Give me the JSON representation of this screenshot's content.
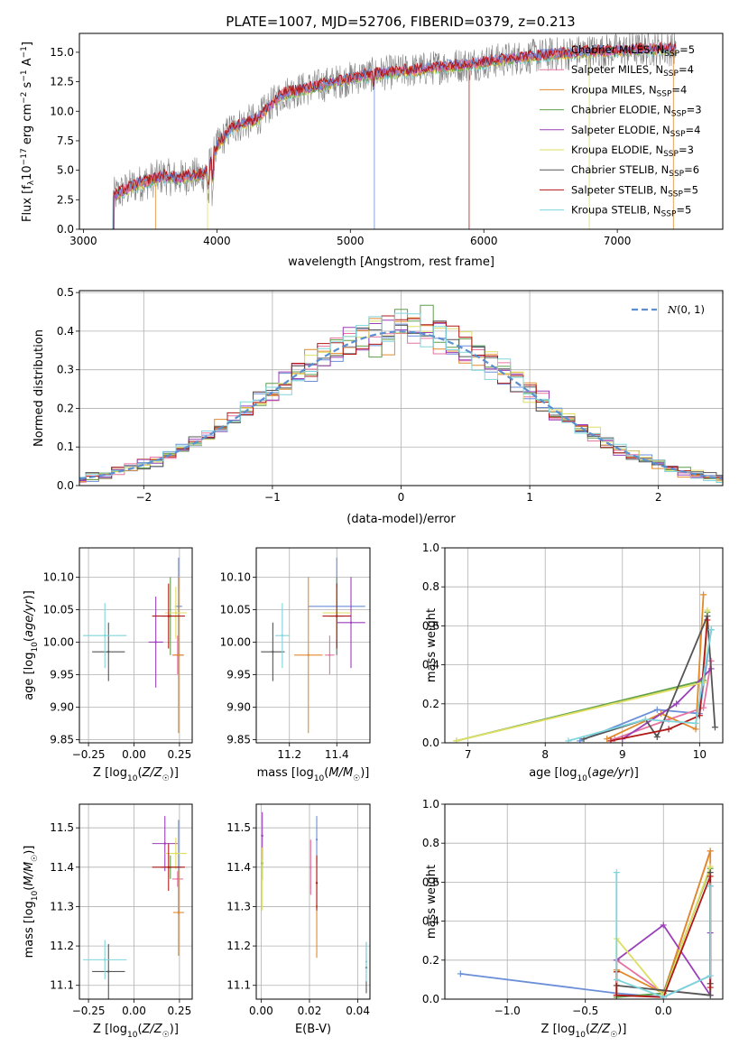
{
  "colors": {
    "CM": "#6a8fd8",
    "SM": "#e6739f",
    "KM": "#e08a2c",
    "CE": "#5f9e4a",
    "SE": "#9a3fb8",
    "KE": "#dede63",
    "CS": "#555555",
    "SS": "#b01818",
    "KS": "#7fd5dc",
    "normal": "#5b8fd0"
  },
  "chart_data": [
    {
      "type": "line",
      "id": "spectrum",
      "title": "PLATE=1007, MJD=52706, FIBERID=0379, z=0.213",
      "xlabel": "wavelength [Angstrom, rest frame]",
      "ylabel": "Flux [f_λ 10^-17 erg cm^-2 s^-1 A^-1]",
      "xlim": [
        2970,
        7790
      ],
      "ylim": [
        0,
        16.6
      ],
      "xticks": [
        3000,
        4000,
        5000,
        6000,
        7000
      ],
      "yticks": [
        0.0,
        2.5,
        5.0,
        7.5,
        10.0,
        12.5,
        15.0
      ],
      "legend_position": "right",
      "series": [
        {
          "key": "CM",
          "name": "Chabrier MILES, N_SSP=5"
        },
        {
          "key": "SM",
          "name": "Salpeter MILES, N_SSP=4"
        },
        {
          "key": "KM",
          "name": "Kroupa MILES, N_SSP=4"
        },
        {
          "key": "CE",
          "name": "Chabrier ELODIE, N_SSP=3"
        },
        {
          "key": "SE",
          "name": "Salpeter ELODIE, N_SSP=4"
        },
        {
          "key": "KE",
          "name": "Kroupa ELODIE, N_SSP=3"
        },
        {
          "key": "CS",
          "name": "Chabrier STELIB, N_SSP=6"
        },
        {
          "key": "SS",
          "name": "Salpeter STELIB, N_SSP=5"
        },
        {
          "key": "KS",
          "name": "Kroupa STELIB, N_SSP=5"
        }
      ],
      "continuum": {
        "x": [
          3220,
          3400,
          3600,
          3700,
          3800,
          3900,
          3950,
          4000,
          4100,
          4200,
          4300,
          4400,
          4500,
          4700,
          4900,
          5100,
          5300,
          5500,
          5700,
          5900,
          6100,
          6300,
          6500,
          6700,
          6900,
          7100,
          7300,
          7440
        ],
        "y": [
          2.8,
          3.8,
          4.5,
          4.3,
          4.5,
          4.6,
          5.5,
          7.0,
          8.5,
          9.0,
          9.3,
          10.5,
          11.5,
          12.0,
          12.5,
          13.0,
          13.3,
          13.5,
          13.8,
          14.0,
          14.3,
          14.6,
          14.8,
          15.0,
          15.1,
          15.2,
          15.3,
          15.3
        ]
      }
    },
    {
      "type": "line",
      "id": "residuals",
      "xlabel": "(data-model)/error",
      "ylabel": "Normed distribution",
      "xlim": [
        -2.5,
        2.5
      ],
      "ylim": [
        0,
        0.505
      ],
      "xticks": [
        -2,
        -1,
        0,
        1,
        2
      ],
      "yticks": [
        0.0,
        0.1,
        0.2,
        0.3,
        0.4,
        0.5
      ],
      "grid": true,
      "legend_position": "top-right",
      "legend_label": "N(0,1)",
      "bin_width": 0.1
    },
    {
      "type": "scatter",
      "id": "age_vs_Z",
      "xlabel": "Z [log10(Z/Z☉)]",
      "ylabel": "age [log10(age/yr)]",
      "xlim": [
        -0.3,
        0.32
      ],
      "ylim": [
        9.845,
        10.145
      ],
      "xticks": [
        -0.25,
        0.0,
        0.25
      ],
      "xtick_labels": [
        "−0.25",
        "0.00",
        "0.25"
      ],
      "yticks": [
        9.85,
        9.9,
        9.95,
        10.0,
        10.05,
        10.1
      ],
      "grid": true,
      "points": [
        {
          "key": "CM",
          "x": 0.245,
          "xerr": 0.02,
          "y": 10.055,
          "yerr": 0.075
        },
        {
          "key": "SM",
          "x": 0.24,
          "xerr": 0.03,
          "y": 9.98,
          "yerr": 0.03
        },
        {
          "key": "KM",
          "x": 0.245,
          "xerr": 0.03,
          "y": 9.98,
          "yerr": 0.12
        },
        {
          "key": "CE",
          "x": 0.2,
          "xerr": 0.05,
          "y": 10.04,
          "yerr": 0.06
        },
        {
          "key": "SE",
          "x": 0.12,
          "xerr": 0.04,
          "y": 10.0,
          "yerr": 0.07
        },
        {
          "key": "KE",
          "x": 0.23,
          "xerr": 0.06,
          "y": 10.045,
          "yerr": 0.04
        },
        {
          "key": "CS",
          "x": -0.14,
          "xerr": 0.09,
          "y": 9.985,
          "yerr": 0.045
        },
        {
          "key": "SS",
          "x": 0.19,
          "xerr": 0.09,
          "y": 10.04,
          "yerr": 0.05
        },
        {
          "key": "KS",
          "x": -0.16,
          "xerr": 0.12,
          "y": 10.01,
          "yerr": 0.05
        }
      ]
    },
    {
      "type": "scatter",
      "id": "age_vs_mass",
      "xlabel": "mass [log10(M/M☉)]",
      "ylabel": "",
      "xlim": [
        11.06,
        11.54
      ],
      "ylim": [
        9.845,
        10.145
      ],
      "xticks": [
        11.2,
        11.4
      ],
      "yticks": [
        9.85,
        9.9,
        9.95,
        10.0,
        10.05,
        10.1
      ],
      "grid": true,
      "points": [
        {
          "key": "CM",
          "x": 11.4,
          "xerr": 0.12,
          "y": 10.055,
          "yerr": 0.075
        },
        {
          "key": "SM",
          "x": 11.37,
          "xerr": 0.02,
          "y": 9.98,
          "yerr": 0.03
        },
        {
          "key": "KM",
          "x": 11.28,
          "xerr": 0.06,
          "y": 9.98,
          "yerr": 0.12
        },
        {
          "key": "CE",
          "x": 11.4,
          "xerr": 0.03,
          "y": 10.04,
          "yerr": 0.06
        },
        {
          "key": "SE",
          "x": 11.46,
          "xerr": 0.06,
          "y": 10.03,
          "yerr": 0.07
        },
        {
          "key": "KE",
          "x": 11.4,
          "xerr": 0.06,
          "y": 10.045,
          "yerr": 0.04
        },
        {
          "key": "CS",
          "x": 11.13,
          "xerr": 0.05,
          "y": 9.985,
          "yerr": 0.045
        },
        {
          "key": "SS",
          "x": 11.4,
          "xerr": 0.06,
          "y": 10.04,
          "yerr": 0.05
        },
        {
          "key": "KS",
          "x": 11.17,
          "xerr": 0.03,
          "y": 10.01,
          "yerr": 0.05
        }
      ]
    },
    {
      "type": "line",
      "id": "weight_vs_age",
      "xlabel": "age [log10(age/yr)]",
      "ylabel": "mass weight",
      "xlim": [
        6.7,
        10.3
      ],
      "ylim": [
        0,
        1.0
      ],
      "xticks": [
        7,
        8,
        9,
        10
      ],
      "yticks": [
        0.0,
        0.2,
        0.4,
        0.6,
        0.8,
        1.0
      ],
      "grid": true,
      "series": [
        {
          "key": "CM",
          "x": [
            8.45,
            9.45,
            10.0,
            10.15
          ],
          "y": [
            0.01,
            0.17,
            0.15,
            0.58
          ]
        },
        {
          "key": "SM",
          "x": [
            8.9,
            9.6,
            10.05,
            10.15
          ],
          "y": [
            0.02,
            0.12,
            0.18,
            0.42
          ]
        },
        {
          "key": "KM",
          "x": [
            8.8,
            9.5,
            9.95,
            10.05
          ],
          "y": [
            0.02,
            0.15,
            0.07,
            0.76
          ]
        },
        {
          "key": "CE",
          "x": [
            6.85,
            10.05,
            10.1
          ],
          "y": [
            0.01,
            0.32,
            0.67
          ]
        },
        {
          "key": "SE",
          "x": [
            9.0,
            9.7,
            10.15
          ],
          "y": [
            0.02,
            0.2,
            0.38
          ]
        },
        {
          "key": "KE",
          "x": [
            6.85,
            10.05,
            10.1
          ],
          "y": [
            0.01,
            0.31,
            0.68
          ]
        },
        {
          "key": "CS",
          "x": [
            8.5,
            9.3,
            9.45,
            10.1,
            10.2
          ],
          "y": [
            0.02,
            0.12,
            0.03,
            0.65,
            0.08
          ]
        },
        {
          "key": "SS",
          "x": [
            8.85,
            9.6,
            10.0,
            10.1
          ],
          "y": [
            0.01,
            0.07,
            0.14,
            0.63
          ]
        },
        {
          "key": "KS",
          "x": [
            8.3,
            9.3,
            9.95,
            10.15
          ],
          "y": [
            0.01,
            0.12,
            0.1,
            0.58
          ]
        }
      ]
    },
    {
      "type": "scatter",
      "id": "mass_vs_Z",
      "xlabel": "Z [log10(Z/Z☉)]",
      "ylabel": "mass [log10(M/M☉)]",
      "xlim": [
        -0.3,
        0.32
      ],
      "ylim": [
        11.065,
        11.56
      ],
      "xticks": [
        -0.25,
        0.0,
        0.25
      ],
      "xtick_labels": [
        "−0.25",
        "0.00",
        "0.25"
      ],
      "yticks": [
        11.1,
        11.2,
        11.3,
        11.4,
        11.5
      ],
      "grid": true,
      "points": [
        {
          "key": "CM",
          "x": 0.245,
          "xerr": 0.02,
          "y": 11.4,
          "yerr": 0.12
        },
        {
          "key": "SM",
          "x": 0.24,
          "xerr": 0.03,
          "y": 11.37,
          "yerr": 0.02
        },
        {
          "key": "KM",
          "x": 0.245,
          "xerr": 0.03,
          "y": 11.285,
          "yerr": 0.11
        },
        {
          "key": "CE",
          "x": 0.2,
          "xerr": 0.05,
          "y": 11.4,
          "yerr": 0.03
        },
        {
          "key": "SE",
          "x": 0.17,
          "xerr": 0.07,
          "y": 11.46,
          "yerr": 0.07
        },
        {
          "key": "KE",
          "x": 0.23,
          "xerr": 0.06,
          "y": 11.435,
          "yerr": 0.04
        },
        {
          "key": "CS",
          "x": -0.14,
          "xerr": 0.09,
          "y": 11.135,
          "yerr": 0.07
        },
        {
          "key": "SS",
          "x": 0.19,
          "xerr": 0.09,
          "y": 11.4,
          "yerr": 0.06
        },
        {
          "key": "KS",
          "x": -0.16,
          "xerr": 0.12,
          "y": 11.165,
          "yerr": 0.05
        }
      ]
    },
    {
      "type": "scatter",
      "id": "mass_vs_ebv",
      "xlabel": "E(B-V)",
      "ylabel": "",
      "xlim": [
        -0.002,
        0.045
      ],
      "ylim": [
        11.065,
        11.56
      ],
      "xticks": [
        0.0,
        0.02,
        0.04
      ],
      "xtick_labels": [
        "0.00",
        "0.02",
        "0.04"
      ],
      "yticks": [
        11.1,
        11.2,
        11.3,
        11.4,
        11.5
      ],
      "grid": true,
      "points": [
        {
          "key": "CM",
          "x": 0.023,
          "xerr": 0,
          "y": 11.47,
          "yerr": 0.06
        },
        {
          "key": "SM",
          "x": 0.0205,
          "xerr": 0,
          "y": 11.4,
          "yerr": 0.07
        },
        {
          "key": "KM",
          "x": 0.023,
          "xerr": 0,
          "y": 11.3,
          "yerr": 0.13
        },
        {
          "key": "CE",
          "x": 0.0005,
          "xerr": 0,
          "y": 11.41,
          "yerr": 0.04
        },
        {
          "key": "SE",
          "x": 0.0005,
          "xerr": 0,
          "y": 11.48,
          "yerr": 0.06
        },
        {
          "key": "KE",
          "x": 0.0005,
          "xerr": 0,
          "y": 11.37,
          "yerr": 0.08
        },
        {
          "key": "CS",
          "x": 0.0435,
          "xerr": 0,
          "y": 11.145,
          "yerr": 0.065
        },
        {
          "key": "SS",
          "x": 0.023,
          "xerr": 0,
          "y": 11.36,
          "yerr": 0.07
        },
        {
          "key": "KS",
          "x": 0.0435,
          "xerr": 0,
          "y": 11.16,
          "yerr": 0.05
        }
      ]
    },
    {
      "type": "line",
      "id": "weight_vs_Z",
      "xlabel": "Z [log10(Z/Z☉)]",
      "ylabel": "mass weight",
      "xlim": [
        -1.4,
        0.38
      ],
      "ylim": [
        0,
        1.0
      ],
      "xticks": [
        -1.0,
        -0.5,
        0.0
      ],
      "xtick_labels": [
        "−1.0",
        "−0.5",
        "0.0"
      ],
      "yticks": [
        0.0,
        0.2,
        0.4,
        0.6,
        0.8,
        1.0
      ],
      "grid": true,
      "series": [
        {
          "key": "CM",
          "x": [
            -1.3,
            -0.3,
            0.0,
            0.3,
            0.3
          ],
          "y": [
            0.13,
            0.03,
            0.01,
            0.12,
            0.58
          ]
        },
        {
          "key": "SM",
          "x": [
            -0.3,
            -0.3,
            0.0,
            0.3
          ],
          "y": [
            0.02,
            0.2,
            0.03,
            0.76
          ]
        },
        {
          "key": "KM",
          "x": [
            -0.3,
            -0.3,
            0.0,
            0.3,
            0.3
          ],
          "y": [
            0.02,
            0.15,
            0.03,
            0.76,
            0.02
          ]
        },
        {
          "key": "CE",
          "x": [
            -0.3,
            0.0,
            0.3
          ],
          "y": [
            0.01,
            0.03,
            0.67
          ]
        },
        {
          "key": "SE",
          "x": [
            -0.3,
            -0.3,
            0.0,
            0.3,
            0.3
          ],
          "y": [
            0.02,
            0.2,
            0.38,
            0.02,
            0.34
          ]
        },
        {
          "key": "KE",
          "x": [
            -0.3,
            -0.3,
            0.0,
            0.3
          ],
          "y": [
            0.02,
            0.31,
            0.02,
            0.68
          ]
        },
        {
          "key": "CS",
          "x": [
            -0.3,
            0.3,
            0.3,
            0.3
          ],
          "y": [
            0.07,
            0.02,
            0.65,
            0.08
          ]
        },
        {
          "key": "SS",
          "x": [
            -0.3,
            -0.3,
            0.0,
            0.3,
            0.3
          ],
          "y": [
            0.14,
            0.02,
            0.01,
            0.63,
            0.06
          ]
        },
        {
          "key": "KS",
          "x": [
            -0.3,
            -0.3,
            0.0,
            0.3,
            0.3
          ],
          "y": [
            0.65,
            0.1,
            0.01,
            0.12,
            0.58
          ]
        }
      ]
    }
  ]
}
